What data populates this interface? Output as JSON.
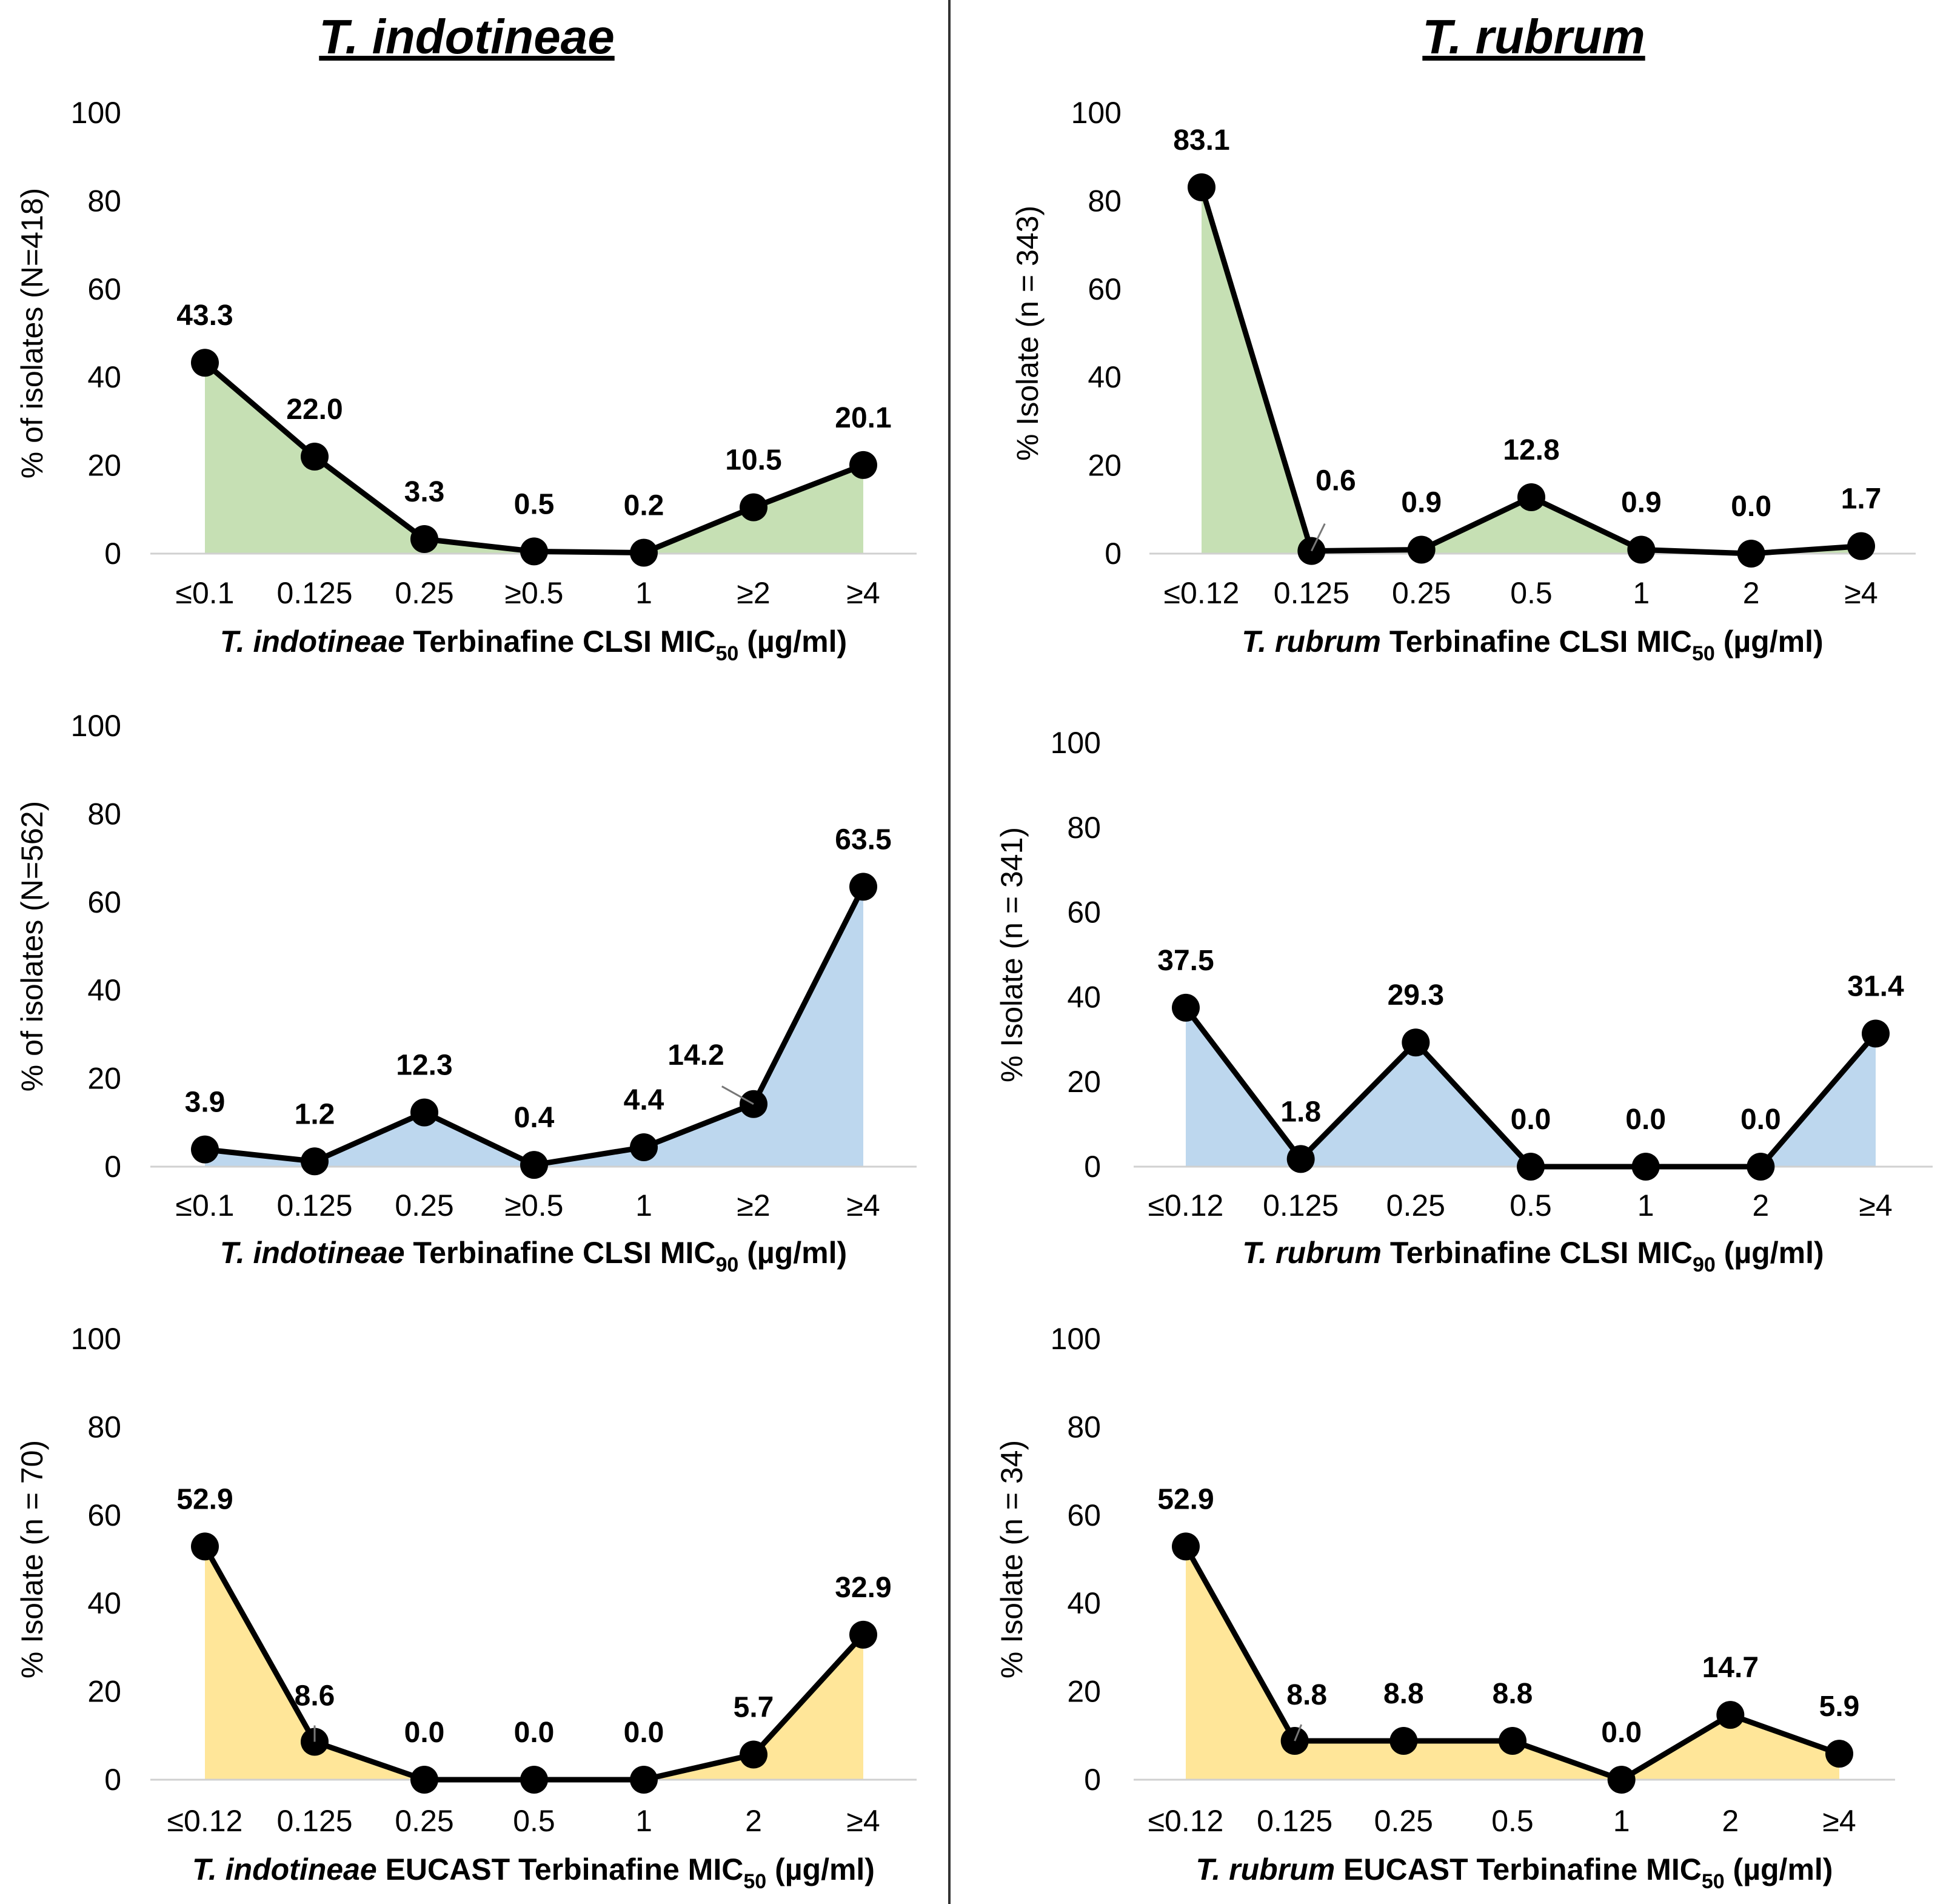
{
  "column_titles": [
    "T. indotineae",
    "T. rubrum"
  ],
  "colors": {
    "green": "#c6e0b4",
    "blue": "#bdd7ee",
    "yellow": "#ffe699",
    "line": "#000000"
  },
  "chart_data": [
    {
      "type": "area",
      "id": "ti-clsi-mic50",
      "species": "T. indotineae",
      "ylabel": "% of isolates (N=418)",
      "xlabel_species": "T. indotineae",
      "xlabel_rest": "Terbinafine CLSI MIC",
      "xlabel_sub": "50",
      "xlabel_unit": "(µg/ml)",
      "categories": [
        "≤0.1",
        "0.125",
        "0.25",
        "≥0.5",
        "1",
        "≥2",
        "≥4"
      ],
      "values": [
        43.3,
        22.0,
        3.3,
        0.5,
        0.2,
        10.5,
        20.1
      ],
      "labels": [
        "43.3",
        "22.0",
        "3.3",
        "0.5",
        "0.2",
        "10.5",
        "20.1"
      ],
      "yticks": [
        "0",
        "20",
        "40",
        "60",
        "80",
        "100"
      ],
      "ylim": [
        0,
        100
      ],
      "fill": "green"
    },
    {
      "type": "area",
      "id": "tr-clsi-mic50",
      "species": "T. rubrum",
      "ylabel": "% Isolate (n = 343)",
      "xlabel_species": "T. rubrum",
      "xlabel_rest": "Terbinafine CLSI MIC",
      "xlabel_sub": "50",
      "xlabel_unit": "(µg/ml)",
      "categories": [
        "≤0.12",
        "0.125",
        "0.25",
        "0.5",
        "1",
        "2",
        "≥4"
      ],
      "values": [
        83.1,
        0.6,
        0.9,
        12.8,
        0.9,
        0.0,
        1.7
      ],
      "labels": [
        "83.1",
        "0.6",
        "0.9",
        "12.8",
        "0.9",
        "0.0",
        "1.7"
      ],
      "yticks": [
        "0",
        "20",
        "40",
        "60",
        "80",
        "100"
      ],
      "ylim": [
        0,
        100
      ],
      "fill": "green"
    },
    {
      "type": "area",
      "id": "ti-clsi-mic90",
      "species": "T. indotineae",
      "ylabel": "% of isolates (N=562)",
      "xlabel_species": "T. indotineae",
      "xlabel_rest": "Terbinafine CLSI MIC",
      "xlabel_sub": "90",
      "xlabel_unit": "(µg/ml)",
      "categories": [
        "≤0.1",
        "0.125",
        "0.25",
        "≥0.5",
        "1",
        "≥2",
        "≥4"
      ],
      "values": [
        3.9,
        1.2,
        12.3,
        0.4,
        4.4,
        14.2,
        63.5
      ],
      "labels": [
        "3.9",
        "1.2",
        "12.3",
        "0.4",
        "4.4",
        "14.2",
        "63.5"
      ],
      "yticks": [
        "0",
        "20",
        "40",
        "60",
        "80",
        "100"
      ],
      "ylim": [
        0,
        100
      ],
      "fill": "blue"
    },
    {
      "type": "area",
      "id": "tr-clsi-mic90",
      "species": "T. rubrum",
      "ylabel": "% Isolate (n = 341)",
      "xlabel_species": "T. rubrum",
      "xlabel_rest": "Terbinafine CLSI MIC",
      "xlabel_sub": "90",
      "xlabel_unit": "(µg/ml)",
      "categories": [
        "≤0.12",
        "0.125",
        "0.25",
        "0.5",
        "1",
        "2",
        "≥4"
      ],
      "values": [
        37.5,
        1.8,
        29.3,
        0.0,
        0.0,
        0.0,
        31.4
      ],
      "labels": [
        "37.5",
        "1.8",
        "29.3",
        "0.0",
        "0.0",
        "0.0",
        "31.4"
      ],
      "yticks": [
        "0",
        "20",
        "40",
        "60",
        "80",
        "100"
      ],
      "ylim": [
        0,
        100
      ],
      "fill": "blue"
    },
    {
      "type": "area",
      "id": "ti-eucast-mic50",
      "species": "T. indotineae",
      "ylabel": "% Isolate (n = 70)",
      "xlabel_species": "T. indotineae",
      "xlabel_rest": "EUCAST Terbinafine MIC",
      "xlabel_sub": "50",
      "xlabel_unit": "(µg/ml)",
      "categories": [
        "≤0.12",
        "0.125",
        "0.25",
        "0.5",
        "1",
        "2",
        "≥4"
      ],
      "values": [
        52.9,
        8.6,
        0.0,
        0.0,
        0.0,
        5.7,
        32.9
      ],
      "labels": [
        "52.9",
        "8.6",
        "0.0",
        "0.0",
        "0.0",
        "5.7",
        "32.9"
      ],
      "yticks": [
        "0",
        "20",
        "40",
        "60",
        "80",
        "100"
      ],
      "ylim": [
        0,
        100
      ],
      "fill": "yellow"
    },
    {
      "type": "area",
      "id": "tr-eucast-mic50",
      "species": "T. rubrum",
      "ylabel": "% Isolate (n = 34)",
      "xlabel_species": "T. rubrum",
      "xlabel_rest": "EUCAST Terbinafine MIC",
      "xlabel_sub": "50",
      "xlabel_unit": "(µg/ml)",
      "categories": [
        "≤0.12",
        "0.125",
        "0.25",
        "0.5",
        "1",
        "2",
        "≥4"
      ],
      "values": [
        52.9,
        8.8,
        8.8,
        8.8,
        0.0,
        14.7,
        5.9
      ],
      "labels": [
        "52.9",
        "8.8",
        "8.8",
        "8.8",
        "0.0",
        "14.7",
        "5.9"
      ],
      "yticks": [
        "0",
        "20",
        "40",
        "60",
        "80",
        "100"
      ],
      "ylim": [
        0,
        100
      ],
      "fill": "yellow"
    }
  ]
}
